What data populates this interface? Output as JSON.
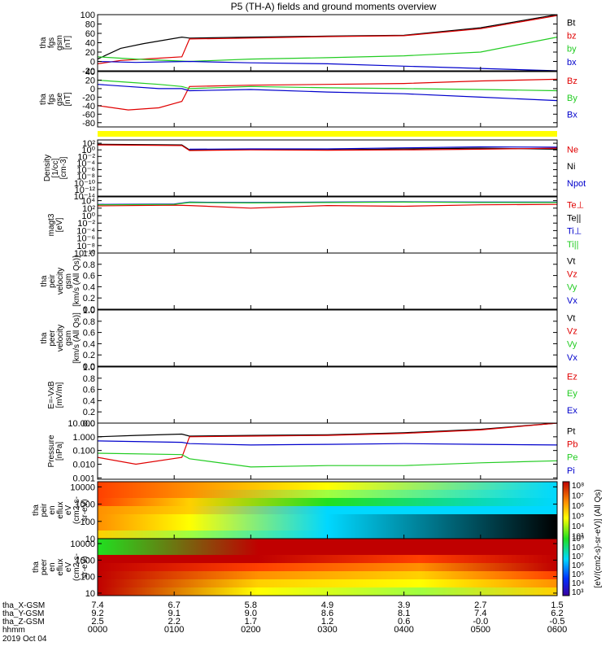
{
  "title": "P5 (TH-A) fields and ground moments overview",
  "colors": {
    "black": "#000000",
    "red": "#e00000",
    "green": "#22cc22",
    "blue": "#0000cc",
    "yellow": "#ffff00",
    "frame": "#000000"
  },
  "chart_data": {
    "type": "line",
    "time_axis": {
      "ticks": [
        "0000",
        "0100",
        "0200",
        "0300",
        "0400",
        "0500",
        "0600"
      ],
      "rows": [
        {
          "label": "tha_X-GSM",
          "values": [
            "7.4",
            "6.7",
            "5.8",
            "4.9",
            "3.9",
            "2.7",
            "1.5"
          ]
        },
        {
          "label": "tha_Y-GSM",
          "values": [
            "9.2",
            "9.1",
            "9.0",
            "8.6",
            "8.1",
            "7.4",
            "6.2"
          ]
        },
        {
          "label": "tha_Z-GSM",
          "values": [
            "2.5",
            "2.2",
            "1.7",
            "1.2",
            "0.6",
            "-0.0",
            "-0.5"
          ]
        },
        {
          "label": "hhmm",
          "values": []
        }
      ],
      "date": "2019 Oct 04",
      "xlim_hours": [
        0,
        6
      ]
    },
    "panels": [
      {
        "id": "fgs-gsm",
        "ylabel": [
          "tha",
          "fgs",
          "gsm",
          "[nT]"
        ],
        "ylim": [
          -20,
          100
        ],
        "ticks": [
          "100",
          "80",
          "60",
          "40",
          "20",
          "0",
          "-20"
        ],
        "tick_values": [
          100,
          80,
          60,
          40,
          20,
          0,
          -20
        ],
        "legend": [
          {
            "name": "Bt",
            "color": "#000000"
          },
          {
            "name": "bz",
            "color": "#e00000"
          },
          {
            "name": "by",
            "color": "#22cc22"
          },
          {
            "name": "bx",
            "color": "#0000cc"
          }
        ],
        "series": [
          {
            "name": "Bt",
            "color": "#000000",
            "x": [
              0,
              0.3,
              0.6,
              1.1,
              1.2,
              2.0,
              3.0,
              4.0,
              5.0,
              6.0
            ],
            "y": [
              5,
              28,
              38,
              52,
              50,
              52,
              54,
              56,
              72,
              100
            ]
          },
          {
            "name": "bz",
            "color": "#e00000",
            "x": [
              0,
              0.3,
              0.6,
              1.1,
              1.2,
              2.0,
              3.0,
              4.0,
              5.0,
              6.0
            ],
            "y": [
              -5,
              2,
              5,
              10,
              48,
              50,
              53,
              55,
              70,
              98
            ]
          },
          {
            "name": "by",
            "color": "#22cc22",
            "x": [
              0,
              0.5,
              1.2,
              2.0,
              3.0,
              4.0,
              5.0,
              6.0
            ],
            "y": [
              10,
              5,
              0,
              5,
              8,
              12,
              20,
              52
            ]
          },
          {
            "name": "bx",
            "color": "#0000cc",
            "x": [
              0,
              0.5,
              1.2,
              2.0,
              3.0,
              4.0,
              5.0,
              6.0
            ],
            "y": [
              0,
              -2,
              0,
              -3,
              -5,
              -10,
              -15,
              -20
            ]
          }
        ]
      },
      {
        "id": "fgs-gse",
        "ylabel": [
          "tha",
          "fgs",
          "gse",
          "[nT]"
        ],
        "ylim": [
          -90,
          40
        ],
        "ticks": [
          "40",
          "20",
          "0",
          "-20",
          "-40",
          "-60",
          "-80"
        ],
        "tick_values": [
          40,
          20,
          0,
          -20,
          -40,
          -60,
          -80
        ],
        "legend": [
          {
            "name": "Bz",
            "color": "#e00000"
          },
          {
            "name": "By",
            "color": "#22cc22"
          },
          {
            "name": "Bx",
            "color": "#0000cc"
          }
        ],
        "series": [
          {
            "name": "Bz",
            "color": "#e00000",
            "x": [
              0,
              0.4,
              0.8,
              1.1,
              1.2,
              2.0,
              3.0,
              4.0,
              5.0,
              6.0
            ],
            "y": [
              -40,
              -50,
              -45,
              -30,
              5,
              8,
              10,
              12,
              18,
              22
            ]
          },
          {
            "name": "By",
            "color": "#22cc22",
            "x": [
              0,
              0.4,
              0.8,
              1.1,
              1.2,
              2.0,
              3.0,
              4.0,
              5.0,
              6.0
            ],
            "y": [
              20,
              15,
              10,
              5,
              0,
              5,
              2,
              0,
              -2,
              -5
            ]
          },
          {
            "name": "Bx",
            "color": "#0000cc",
            "x": [
              0,
              0.4,
              0.8,
              1.1,
              1.2,
              2.0,
              3.0,
              4.0,
              5.0,
              6.0
            ],
            "y": [
              10,
              5,
              0,
              0,
              -5,
              -2,
              -8,
              -12,
              -20,
              -28
            ]
          }
        ]
      },
      {
        "id": "density",
        "ylabel": [
          "Density",
          "[1/cc]",
          "[cm-3]"
        ],
        "log": true,
        "ylim_exp": [
          -14,
          3
        ],
        "ticks": [
          "10²",
          "10⁰",
          "10⁻²",
          "10⁻⁴",
          "10⁻⁶",
          "10⁻⁸",
          "10⁻¹⁰",
          "10⁻¹²",
          "10⁻¹⁴"
        ],
        "tick_exps": [
          2,
          0,
          -2,
          -4,
          -6,
          -8,
          -10,
          -12,
          -14
        ],
        "legend": [
          {
            "name": "Ne",
            "color": "#e00000"
          },
          {
            "name": "Ni",
            "color": "#000000"
          },
          {
            "name": "Npot",
            "color": "#0000cc"
          }
        ],
        "series": [
          {
            "name": "Ni",
            "color": "#000000",
            "x": [
              0,
              1.1,
              1.2,
              2.0,
              3.0,
              4.0,
              5.0,
              6.0
            ],
            "y": [
              1.7,
              1.5,
              0.0,
              0.1,
              0.0,
              0.3,
              0.5,
              0.2
            ]
          },
          {
            "name": "Ne",
            "color": "#e00000",
            "x": [
              0,
              1.1,
              1.2,
              2.0,
              3.0,
              4.0,
              5.0,
              6.0
            ],
            "y": [
              1.5,
              1.3,
              -0.2,
              0.0,
              -0.1,
              0.0,
              0.2,
              0.5
            ]
          },
          {
            "name": "Npot",
            "color": "#0000cc",
            "x": [
              1.2,
              2.0,
              3.0,
              4.0,
              5.0,
              6.0
            ],
            "y": [
              0.2,
              0.3,
              0.3,
              0.6,
              0.9,
              0.8
            ]
          }
        ]
      },
      {
        "id": "temperature",
        "ylabel": [
          "magt3",
          "[eV]"
        ],
        "log": true,
        "ylim_exp": [
          -10,
          5
        ],
        "ticks": [
          "10⁴",
          "10²",
          "10⁰",
          "10⁻²",
          "10⁻⁴",
          "10⁻⁶",
          "10⁻⁸",
          "10⁻¹⁰"
        ],
        "tick_exps": [
          4,
          2,
          0,
          -2,
          -4,
          -6,
          -8,
          -10
        ],
        "legend": [
          {
            "name": "Te⊥",
            "color": "#e00000"
          },
          {
            "name": "Te||",
            "color": "#000000"
          },
          {
            "name": "Ti⊥",
            "color": "#0000cc"
          },
          {
            "name": "Ti||",
            "color": "#22cc22"
          }
        ],
        "series": [
          {
            "name": "Ti⊥",
            "color": "#0000cc",
            "x": [
              0,
              1.0,
              1.2,
              2.0,
              3.0,
              4.0,
              5.0,
              6.0
            ],
            "y": [
              3.0,
              3.1,
              3.6,
              3.5,
              3.6,
              3.7,
              3.6,
              3.6
            ]
          },
          {
            "name": "Te⊥",
            "color": "#e00000",
            "x": [
              0,
              1.0,
              1.2,
              2.0,
              3.0,
              4.0,
              5.0,
              6.0
            ],
            "y": [
              2.6,
              2.8,
              2.7,
              2.0,
              2.7,
              2.5,
              2.9,
              3.0
            ]
          },
          {
            "name": "Ti||",
            "color": "#22cc22",
            "x": [
              0,
              1.0,
              1.2,
              2.0,
              3.0,
              4.0,
              5.0,
              6.0
            ],
            "y": [
              2.9,
              3.0,
              3.5,
              3.4,
              3.5,
              3.6,
              3.5,
              3.5
            ]
          }
        ]
      },
      {
        "id": "peir-velocity",
        "ylabel": [
          "tha",
          "peir",
          "velocity",
          "gsm",
          "[km/s (All Qs)]"
        ],
        "ylim": [
          0,
          1
        ],
        "ticks": [
          "1.0",
          "0.8",
          "0.6",
          "0.4",
          "0.2",
          "0.0"
        ],
        "tick_values": [
          1.0,
          0.8,
          0.6,
          0.4,
          0.2,
          0.0
        ],
        "legend": [
          {
            "name": "Vt",
            "color": "#000000"
          },
          {
            "name": "Vz",
            "color": "#e00000"
          },
          {
            "name": "Vy",
            "color": "#22cc22"
          },
          {
            "name": "Vx",
            "color": "#0000cc"
          }
        ],
        "series": []
      },
      {
        "id": "peer-velocity",
        "ylabel": [
          "tha",
          "peer",
          "velocity",
          "gsm",
          "[km/s (All Qs)]"
        ],
        "ylim": [
          0,
          1
        ],
        "ticks": [
          "1.0",
          "0.8",
          "0.6",
          "0.4",
          "0.2",
          "0.0"
        ],
        "tick_values": [
          1.0,
          0.8,
          0.6,
          0.4,
          0.2,
          0.0
        ],
        "legend": [
          {
            "name": "Vt",
            "color": "#000000"
          },
          {
            "name": "Vz",
            "color": "#e00000"
          },
          {
            "name": "Vy",
            "color": "#22cc22"
          },
          {
            "name": "Vx",
            "color": "#0000cc"
          }
        ],
        "series": []
      },
      {
        "id": "e-field",
        "ylabel": [
          "E=-VxB",
          "[mV/m]"
        ],
        "ylim": [
          0,
          1
        ],
        "ticks": [
          "1.0",
          "0.8",
          "0.6",
          "0.4",
          "0.2",
          "0.0"
        ],
        "tick_values": [
          1.0,
          0.8,
          0.6,
          0.4,
          0.2,
          0.0
        ],
        "legend": [
          {
            "name": "Ez",
            "color": "#e00000"
          },
          {
            "name": "Ey",
            "color": "#22cc22"
          },
          {
            "name": "Ex",
            "color": "#0000cc"
          }
        ],
        "series": []
      },
      {
        "id": "pressure",
        "ylabel": [
          "Pressure",
          "[nPa]"
        ],
        "log": true,
        "ylim_exp": [
          -3.1,
          1
        ],
        "ticks": [
          "10.000",
          "1.000",
          "0.100",
          "0.010",
          "0.001"
        ],
        "tick_exps": [
          1,
          0,
          -1,
          -2,
          -3
        ],
        "legend": [
          {
            "name": "Pt",
            "color": "#000000"
          },
          {
            "name": "Pb",
            "color": "#e00000"
          },
          {
            "name": "Pe",
            "color": "#22cc22"
          },
          {
            "name": "Pi",
            "color": "#0000cc"
          }
        ],
        "series": [
          {
            "name": "Pt",
            "color": "#000000",
            "x": [
              0,
              0.5,
              1.1,
              1.2,
              2.0,
              3.0,
              4.0,
              5.0,
              6.0
            ],
            "y": [
              0.0,
              0.1,
              0.2,
              0.05,
              0.1,
              0.15,
              0.3,
              0.55,
              1.0
            ]
          },
          {
            "name": "Pb",
            "color": "#e00000",
            "x": [
              0,
              0.5,
              1.1,
              1.2,
              2.0,
              3.0,
              4.0,
              5.0,
              6.0
            ],
            "y": [
              -1.5,
              -2.0,
              -1.5,
              0.0,
              0.05,
              0.1,
              0.25,
              0.5,
              1.0
            ]
          },
          {
            "name": "Pi",
            "color": "#0000cc",
            "x": [
              0,
              1.1,
              1.2,
              2.0,
              3.0,
              4.0,
              5.0,
              6.0
            ],
            "y": [
              -0.3,
              -0.4,
              -0.5,
              -0.6,
              -0.55,
              -0.5,
              -0.55,
              -0.6
            ]
          },
          {
            "name": "Pe",
            "color": "#22cc22",
            "x": [
              0,
              1.1,
              1.2,
              2.0,
              3.0,
              4.0,
              5.0,
              6.0
            ],
            "y": [
              -1.2,
              -1.3,
              -1.6,
              -2.2,
              -2.1,
              -2.1,
              -1.9,
              -1.75
            ]
          }
        ]
      },
      {
        "id": "peir-eflux",
        "type": "heatmap",
        "ylabel": [
          "tha",
          "peir",
          "en",
          "eflux",
          "eV",
          "(cm2-s-",
          "sr-eV)"
        ],
        "log": true,
        "ylim_exp": [
          1,
          4.3
        ],
        "ticks": [
          "10000",
          "1000",
          "100",
          "10"
        ],
        "tick_exps": [
          4,
          3,
          2,
          1
        ]
      },
      {
        "id": "peer-eflux",
        "type": "heatmap",
        "ylabel": [
          "tha",
          "peer",
          "en",
          "eflux",
          "eV",
          "(cm2-s-",
          "sr-eV)"
        ],
        "log": true,
        "ylim_exp": [
          0.85,
          4.3
        ],
        "ticks": [
          "10000",
          "1000",
          "100",
          "10"
        ],
        "tick_exps": [
          4,
          3,
          2,
          1
        ]
      }
    ],
    "colorbar": {
      "label": "[eV/(cm2-s)-sr-eV)] (All Qs)",
      "peir_ticks": [
        "10⁸",
        "10⁷",
        "10⁶",
        "10⁵",
        "10⁴",
        "10³"
      ],
      "peer_ticks": [
        "10⁹",
        "10⁸",
        "10⁷",
        "10⁶",
        "10⁵",
        "10⁴",
        "10³"
      ]
    }
  }
}
